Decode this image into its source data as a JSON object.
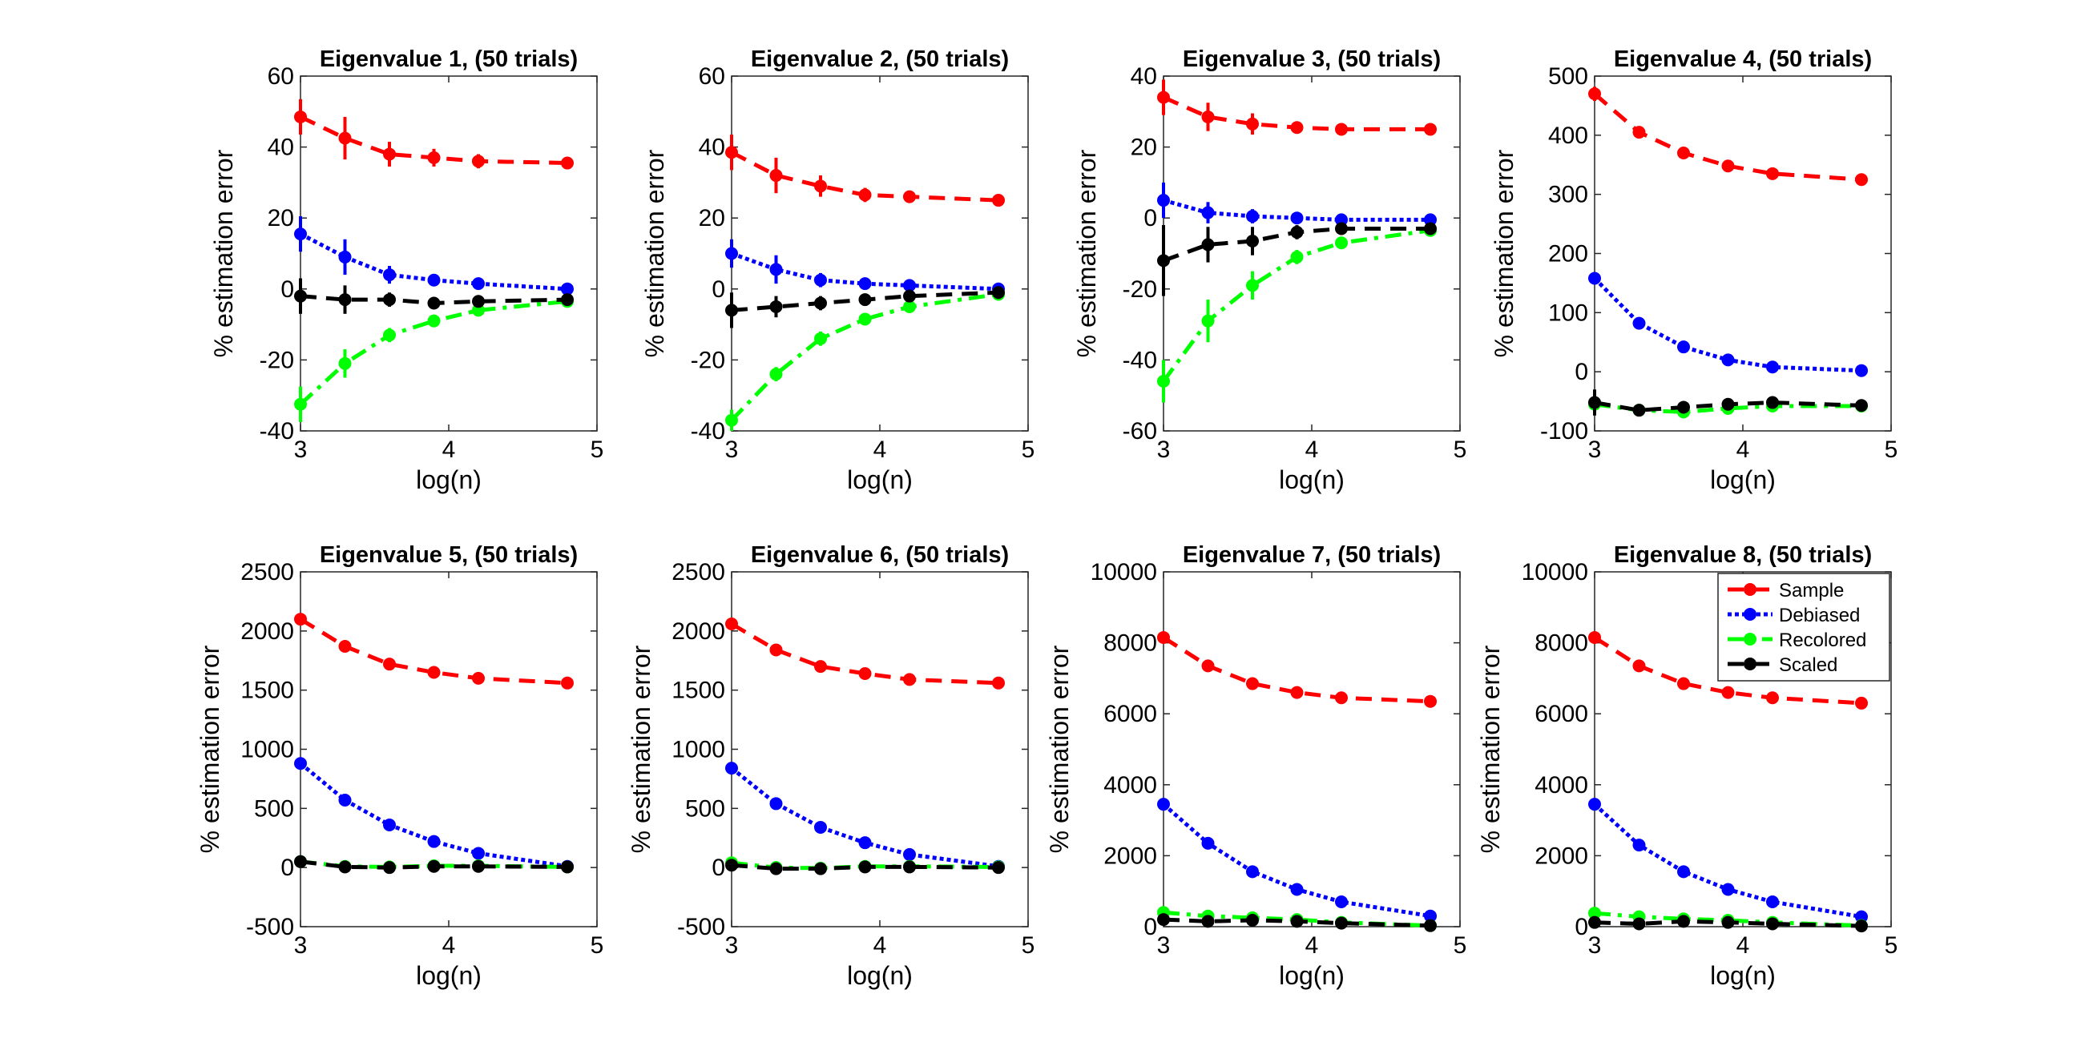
{
  "chart_data": {
    "type": "line",
    "x": [
      3.0,
      3.3,
      3.6,
      3.9,
      4.2,
      4.8
    ],
    "xlabel": "log(n)",
    "ylabel": "% estimation error",
    "xlim": [
      3,
      5
    ],
    "xticks": [
      3,
      4,
      5
    ],
    "grid": false,
    "legend": {
      "placement": "top-right",
      "panel": 8,
      "entries": [
        "Sample",
        "Debiased",
        "Recolored",
        "Scaled"
      ]
    },
    "series_styles": [
      {
        "name": "Sample",
        "color": "#ff0000",
        "dash": "dashed"
      },
      {
        "name": "Debiased",
        "color": "#0000ff",
        "dash": "dotted"
      },
      {
        "name": "Recolored",
        "color": "#00ff00",
        "dash": "dashdot"
      },
      {
        "name": "Scaled",
        "color": "#000000",
        "dash": "dashed"
      }
    ],
    "panels": [
      {
        "title": "Eigenvalue 1, (50 trials)",
        "ylim": [
          -40,
          60
        ],
        "yticks": [
          -40,
          -20,
          0,
          20,
          40,
          60
        ],
        "series": [
          {
            "name": "Sample",
            "values": [
              48.5,
              42.5,
              38,
              37,
              36,
              35.5
            ],
            "errors": [
              5,
              6,
              3.5,
              2.5,
              2,
              1
            ]
          },
          {
            "name": "Debiased",
            "values": [
              15.5,
              9,
              4,
              2.5,
              1.5,
              0
            ],
            "errors": [
              5,
              5,
              2.5,
              1.5,
              1,
              1
            ]
          },
          {
            "name": "Recolored",
            "values": [
              -32.5,
              -21,
              -13,
              -9,
              -6,
              -3.5
            ],
            "errors": [
              5,
              4,
              2,
              1.5,
              1,
              1
            ]
          },
          {
            "name": "Scaled",
            "values": [
              -2,
              -3,
              -3,
              -4,
              -3.5,
              -3
            ],
            "errors": [
              5,
              4,
              2,
              1.5,
              1,
              1
            ]
          }
        ]
      },
      {
        "title": "Eigenvalue 2, (50 trials)",
        "ylim": [
          -40,
          60
        ],
        "yticks": [
          -40,
          -20,
          0,
          20,
          40,
          60
        ],
        "series": [
          {
            "name": "Sample",
            "values": [
              38.5,
              32,
              29,
              26.5,
              26,
              25
            ],
            "errors": [
              5,
              5,
              3,
              2,
              1.5,
              1
            ]
          },
          {
            "name": "Debiased",
            "values": [
              10,
              5.5,
              2.5,
              1.5,
              1,
              0
            ],
            "errors": [
              4,
              4,
              2,
              1.5,
              1,
              1
            ]
          },
          {
            "name": "Recolored",
            "values": [
              -37,
              -24,
              -14,
              -8.5,
              -5,
              -1.5
            ],
            "errors": [
              3,
              2,
              2,
              1.5,
              1,
              1
            ]
          },
          {
            "name": "Scaled",
            "values": [
              -6,
              -5,
              -4,
              -3,
              -2,
              -1
            ],
            "errors": [
              5,
              3,
              2,
              1.5,
              1,
              1
            ]
          }
        ]
      },
      {
        "title": "Eigenvalue 3, (50 trials)",
        "ylim": [
          -60,
          40
        ],
        "yticks": [
          -60,
          -40,
          -20,
          0,
          20,
          40
        ],
        "series": [
          {
            "name": "Sample",
            "values": [
              34,
              28.5,
              26.5,
              25.5,
              25,
              25
            ],
            "errors": [
              5,
              4,
              3,
              1.5,
              1,
              1
            ]
          },
          {
            "name": "Debiased",
            "values": [
              5,
              1.5,
              0.5,
              0,
              -0.5,
              -0.5
            ],
            "errors": [
              5,
              3,
              2,
              1.5,
              1,
              1
            ]
          },
          {
            "name": "Recolored",
            "values": [
              -46,
              -29,
              -19,
              -11,
              -7,
              -3.5
            ],
            "errors": [
              6,
              6,
              4,
              2,
              1.5,
              1
            ]
          },
          {
            "name": "Scaled",
            "values": [
              -12,
              -7.5,
              -6.5,
              -4,
              -3,
              -3
            ],
            "errors": [
              10,
              5,
              4,
              2,
              1.5,
              1
            ]
          }
        ]
      },
      {
        "title": "Eigenvalue 4, (50 trials)",
        "ylim": [
          -100,
          500
        ],
        "yticks": [
          -100,
          0,
          100,
          200,
          300,
          400,
          500
        ],
        "series": [
          {
            "name": "Sample",
            "values": [
              470,
              405,
              370,
              348,
              335,
              325
            ],
            "errors": [
              12,
              10,
              8,
              6,
              5,
              4
            ]
          },
          {
            "name": "Debiased",
            "values": [
              158,
              82,
              42,
              20,
              8,
              2
            ],
            "errors": [
              8,
              8,
              6,
              5,
              4,
              3
            ]
          },
          {
            "name": "Recolored",
            "values": [
              -55,
              -65,
              -68,
              -62,
              -58,
              -58
            ],
            "errors": [
              10,
              8,
              6,
              5,
              4,
              3
            ]
          },
          {
            "name": "Scaled",
            "values": [
              -52,
              -65,
              -60,
              -55,
              -52,
              -57
            ],
            "errors": [
              22,
              10,
              10,
              8,
              6,
              4
            ]
          }
        ]
      },
      {
        "title": "Eigenvalue 5, (50 trials)",
        "ylim": [
          -500,
          2500
        ],
        "yticks": [
          -500,
          0,
          500,
          1000,
          1500,
          2000,
          2500
        ],
        "series": [
          {
            "name": "Sample",
            "values": [
              2100,
              1870,
              1720,
              1650,
              1600,
              1560
            ],
            "errors": [
              40,
              30,
              25,
              20,
              15,
              10
            ]
          },
          {
            "name": "Debiased",
            "values": [
              880,
              570,
              360,
              220,
              120,
              10
            ],
            "errors": [
              40,
              30,
              25,
              20,
              15,
              10
            ]
          },
          {
            "name": "Recolored",
            "values": [
              50,
              10,
              5,
              15,
              15,
              5
            ],
            "errors": [
              30,
              25,
              20,
              15,
              10,
              10
            ]
          },
          {
            "name": "Scaled",
            "values": [
              50,
              5,
              0,
              10,
              10,
              5
            ],
            "errors": [
              40,
              30,
              25,
              20,
              15,
              10
            ]
          }
        ]
      },
      {
        "title": "Eigenvalue 6, (50 trials)",
        "ylim": [
          -500,
          2500
        ],
        "yticks": [
          -500,
          0,
          500,
          1000,
          1500,
          2000,
          2500
        ],
        "series": [
          {
            "name": "Sample",
            "values": [
              2060,
              1840,
              1700,
              1640,
              1590,
              1560
            ],
            "errors": [
              40,
              30,
              25,
              20,
              15,
              10
            ]
          },
          {
            "name": "Debiased",
            "values": [
              840,
              540,
              340,
              210,
              110,
              10
            ],
            "errors": [
              40,
              30,
              25,
              20,
              15,
              10
            ]
          },
          {
            "name": "Recolored",
            "values": [
              40,
              0,
              -5,
              10,
              10,
              5
            ],
            "errors": [
              30,
              25,
              20,
              15,
              10,
              10
            ]
          },
          {
            "name": "Scaled",
            "values": [
              20,
              -10,
              -10,
              5,
              5,
              0
            ],
            "errors": [
              40,
              30,
              25,
              20,
              15,
              10
            ]
          }
        ]
      },
      {
        "title": "Eigenvalue 7, (50 trials)",
        "ylim": [
          0,
          10000
        ],
        "yticks": [
          0,
          2000,
          4000,
          6000,
          8000,
          10000
        ],
        "series": [
          {
            "name": "Sample",
            "values": [
              8150,
              7350,
              6850,
              6600,
              6450,
              6350
            ],
            "errors": [
              120,
              100,
              80,
              60,
              50,
              40
            ]
          },
          {
            "name": "Debiased",
            "values": [
              3450,
              2350,
              1550,
              1050,
              700,
              300
            ],
            "errors": [
              100,
              80,
              60,
              50,
              40,
              30
            ]
          },
          {
            "name": "Recolored",
            "values": [
              400,
              300,
              250,
              200,
              120,
              30
            ],
            "errors": [
              80,
              60,
              50,
              40,
              30,
              20
            ]
          },
          {
            "name": "Scaled",
            "values": [
              200,
              150,
              180,
              150,
              100,
              30
            ],
            "errors": [
              120,
              80,
              60,
              50,
              40,
              30
            ]
          }
        ]
      },
      {
        "title": "Eigenvalue 8, (50 trials)",
        "ylim": [
          0,
          10000
        ],
        "yticks": [
          0,
          2000,
          4000,
          6000,
          8000,
          10000
        ],
        "series": [
          {
            "name": "Sample",
            "values": [
              8150,
              7350,
              6850,
              6600,
              6450,
              6300
            ],
            "errors": [
              120,
              100,
              80,
              60,
              50,
              40
            ]
          },
          {
            "name": "Debiased",
            "values": [
              3450,
              2300,
              1550,
              1050,
              700,
              280
            ],
            "errors": [
              100,
              80,
              60,
              50,
              40,
              30
            ]
          },
          {
            "name": "Recolored",
            "values": [
              380,
              280,
              220,
              180,
              120,
              30
            ],
            "errors": [
              80,
              60,
              50,
              40,
              30,
              20
            ]
          },
          {
            "name": "Scaled",
            "values": [
              120,
              80,
              150,
              120,
              80,
              20
            ],
            "errors": [
              80,
              60,
              50,
              40,
              30,
              20
            ]
          }
        ]
      }
    ]
  }
}
